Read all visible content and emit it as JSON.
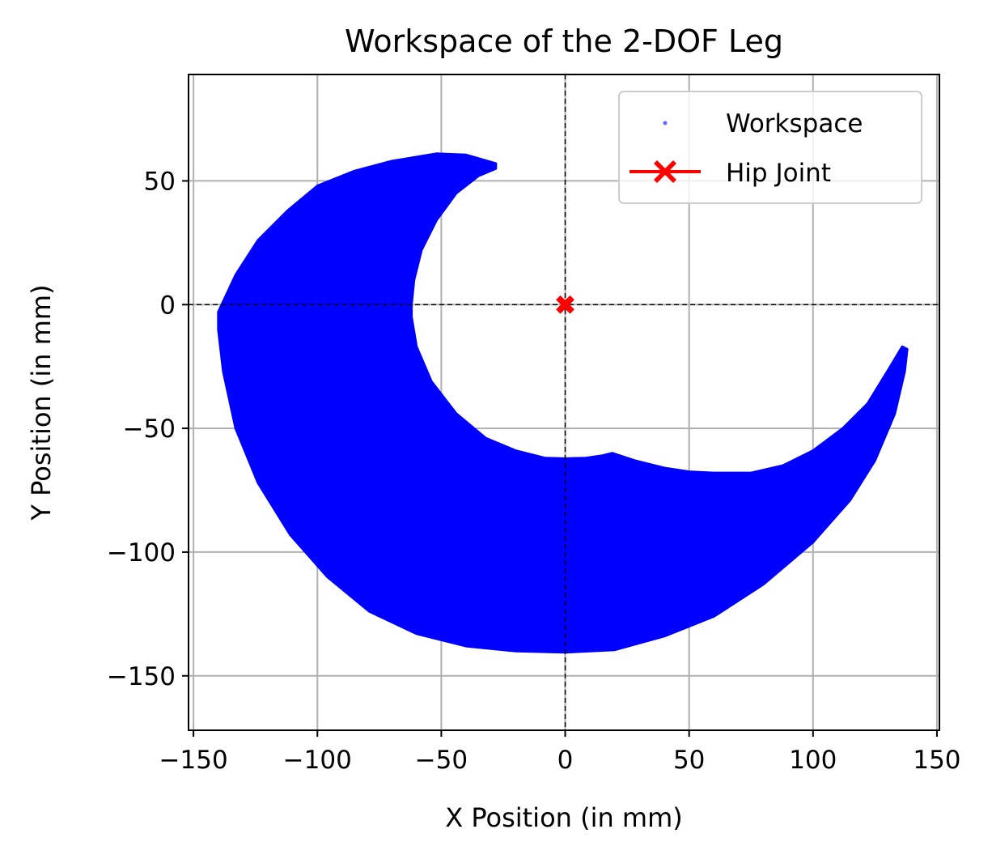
{
  "chart_data": {
    "type": "scatter",
    "title": "Workspace of the 2-DOF Leg",
    "xlabel": "X Position (in mm)",
    "ylabel": "Y Position (in mm)",
    "xlim": [
      -152,
      151
    ],
    "ylim": [
      -172,
      93
    ],
    "xticks": [
      -150,
      -100,
      -50,
      0,
      50,
      100,
      150
    ],
    "yticks": [
      -150,
      -100,
      -50,
      0,
      50
    ],
    "xtick_labels": [
      "−150",
      "−100",
      "−50",
      "0",
      "50",
      "100",
      "150"
    ],
    "ytick_labels": [
      "−150",
      "−100",
      "−50",
      "0",
      "50"
    ],
    "grid": true,
    "reference_lines": {
      "x": 0,
      "y": 0,
      "style": "dashed",
      "color": "#000000"
    },
    "legend": {
      "placement": "upper right",
      "entries": [
        {
          "label": "Workspace",
          "marker": "point",
          "color": "#0000ff"
        },
        {
          "label": "Hip Joint",
          "marker": "X",
          "color": "#ff0000"
        }
      ]
    },
    "series": [
      {
        "name": "Workspace",
        "kind": "filled_region",
        "color": "#0000ff",
        "outline": [
          [
            -28,
            57
          ],
          [
            -40,
            60.5
          ],
          [
            -52,
            61
          ],
          [
            -70,
            58
          ],
          [
            -85,
            54
          ],
          [
            -100,
            48
          ],
          [
            -112,
            38
          ],
          [
            -124,
            26
          ],
          [
            -133,
            12
          ],
          [
            -140,
            -3
          ],
          [
            -140,
            -10
          ],
          [
            -138,
            -27
          ],
          [
            -133,
            -50
          ],
          [
            -124,
            -72
          ],
          [
            -111,
            -93
          ],
          [
            -96,
            -110
          ],
          [
            -79,
            -124
          ],
          [
            -60,
            -133
          ],
          [
            -40,
            -138
          ],
          [
            -20,
            -140
          ],
          [
            0,
            -140.5
          ],
          [
            20,
            -139.5
          ],
          [
            40,
            -134
          ],
          [
            60,
            -126
          ],
          [
            80,
            -113
          ],
          [
            100,
            -96
          ],
          [
            115,
            -79
          ],
          [
            125,
            -63
          ],
          [
            133,
            -44
          ],
          [
            137,
            -27
          ],
          [
            138,
            -18
          ],
          [
            136,
            -17
          ],
          [
            130,
            -27
          ],
          [
            122,
            -40
          ],
          [
            112,
            -50
          ],
          [
            100,
            -59
          ],
          [
            88,
            -65
          ],
          [
            75,
            -68
          ],
          [
            60,
            -68
          ],
          [
            50,
            -67.5
          ],
          [
            40,
            -66
          ],
          [
            28,
            -63
          ],
          [
            19,
            -60
          ],
          [
            15,
            -61
          ],
          [
            8,
            -62
          ],
          [
            0,
            -62.2
          ],
          [
            -8,
            -62
          ],
          [
            -20,
            -59
          ],
          [
            -32,
            -54
          ],
          [
            -44,
            -44
          ],
          [
            -54,
            -31
          ],
          [
            -60,
            -17
          ],
          [
            -62,
            -5
          ],
          [
            -62,
            0
          ],
          [
            -61,
            10
          ],
          [
            -58,
            22
          ],
          [
            -52,
            34
          ],
          [
            -44,
            45
          ],
          [
            -35,
            52
          ],
          [
            -28,
            55
          ]
        ]
      },
      {
        "name": "Hip Joint",
        "kind": "marker",
        "color": "#ff0000",
        "marker": "X",
        "points": [
          [
            0,
            0
          ]
        ]
      }
    ]
  }
}
